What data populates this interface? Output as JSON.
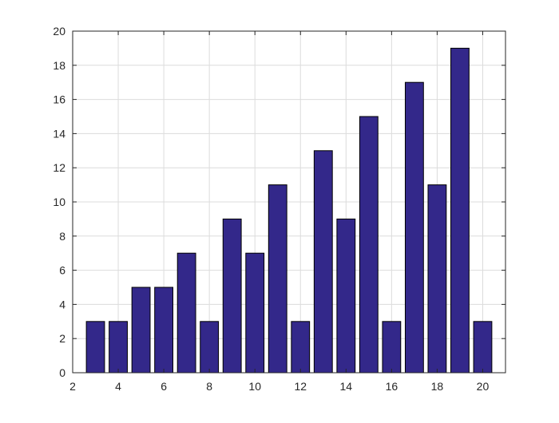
{
  "colors": {
    "bar_fill": "#33288a",
    "bar_stroke": "#000000",
    "grid": "#dcdcdc",
    "axes": "#262626",
    "background": "#ffffff"
  },
  "chart_data": {
    "type": "bar",
    "x": [
      3,
      4,
      5,
      6,
      7,
      8,
      9,
      10,
      11,
      12,
      13,
      14,
      15,
      16,
      17,
      18,
      19,
      20
    ],
    "values": [
      3,
      3,
      5,
      5,
      7,
      3,
      9,
      7,
      11,
      3,
      13,
      9,
      15,
      3,
      17,
      11,
      19,
      3
    ],
    "title": "",
    "xlabel": "",
    "ylabel": "",
    "xlim": [
      2,
      21
    ],
    "ylim": [
      0,
      20
    ],
    "xticks": [
      2,
      4,
      6,
      8,
      10,
      12,
      14,
      16,
      18,
      20
    ],
    "yticks": [
      0,
      2,
      4,
      6,
      8,
      10,
      12,
      14,
      16,
      18,
      20
    ],
    "grid": true,
    "legend": "none",
    "bar_width": 0.8
  }
}
